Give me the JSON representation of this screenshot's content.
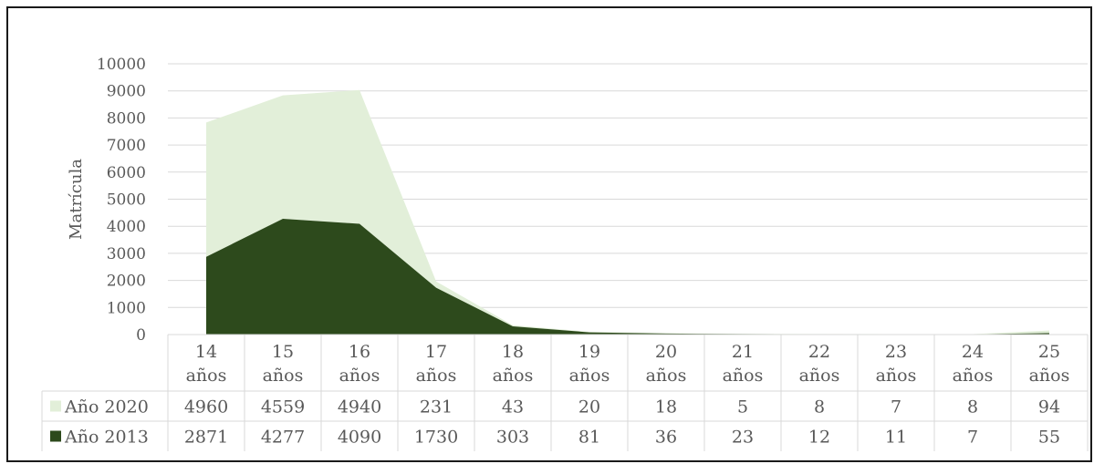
{
  "chart_data": {
    "type": "area",
    "stacked": true,
    "title": "",
    "xlabel": "",
    "ylabel": "Matrícula",
    "ylim": [
      0,
      10000
    ],
    "yticks": [
      0,
      1000,
      2000,
      3000,
      4000,
      5000,
      6000,
      7000,
      8000,
      9000,
      10000
    ],
    "grid": true,
    "categories": [
      [
        "14",
        "años"
      ],
      [
        "15",
        "años"
      ],
      [
        "16",
        "años"
      ],
      [
        "17",
        "años"
      ],
      [
        "18",
        "años"
      ],
      [
        "19",
        "años"
      ],
      [
        "20",
        "años"
      ],
      [
        "21",
        "años"
      ],
      [
        "22",
        "años"
      ],
      [
        "23",
        "años"
      ],
      [
        "24",
        "años"
      ],
      [
        "25",
        "años"
      ]
    ],
    "series": [
      {
        "name": "Año 2020",
        "color": "#e2efd9",
        "values": [
          4960,
          4559,
          4940,
          231,
          43,
          20,
          18,
          5,
          8,
          7,
          8,
          94
        ]
      },
      {
        "name": "Año 2013",
        "color": "#2d4a1c",
        "values": [
          2871,
          4277,
          4090,
          1730,
          303,
          81,
          36,
          23,
          12,
          11,
          7,
          55
        ]
      }
    ],
    "data_table": true
  }
}
